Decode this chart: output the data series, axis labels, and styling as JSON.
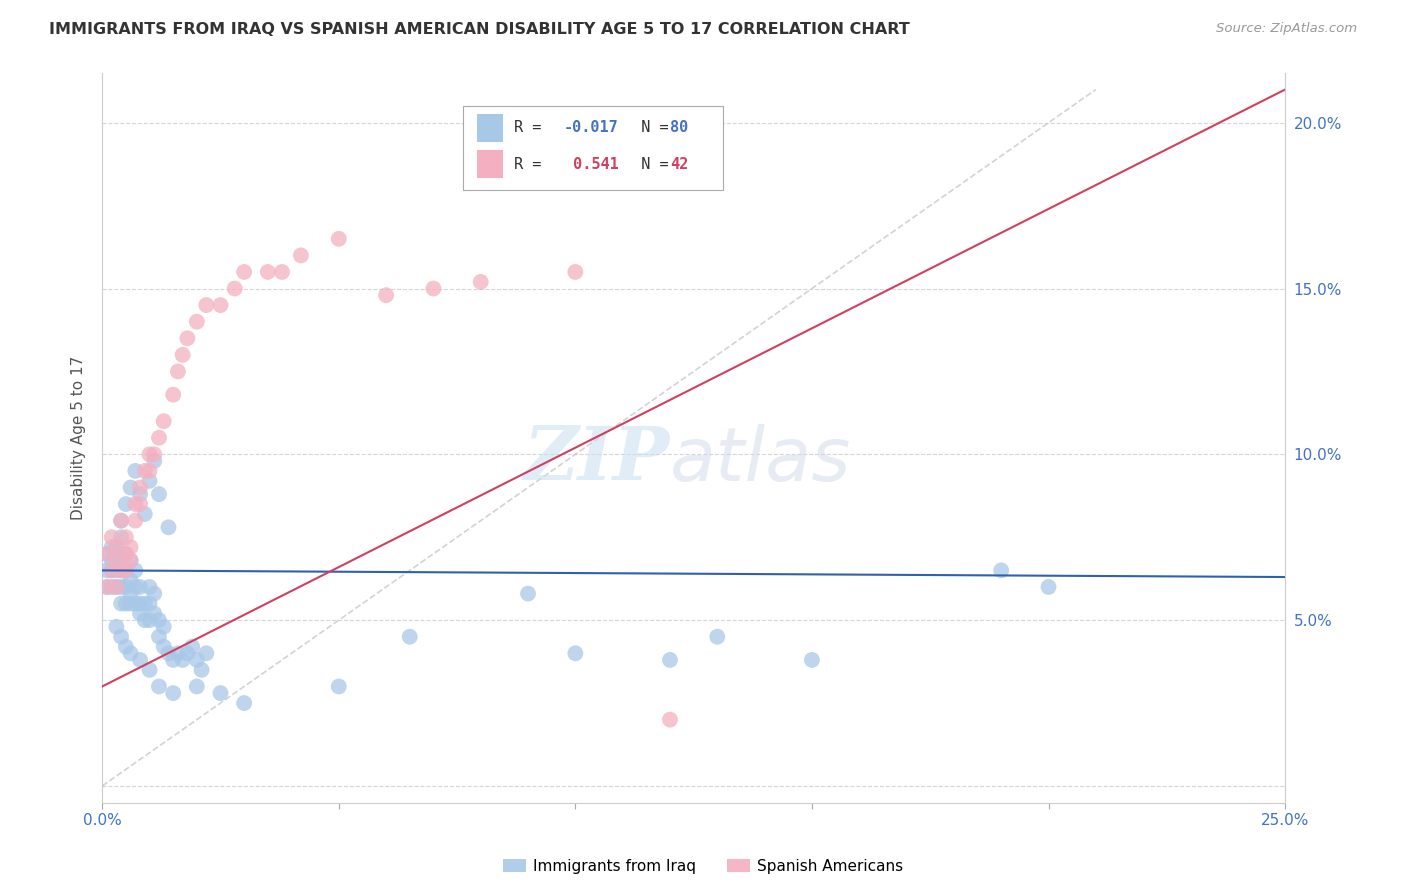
{
  "title": "IMMIGRANTS FROM IRAQ VS SPANISH AMERICAN DISABILITY AGE 5 TO 17 CORRELATION CHART",
  "source": "Source: ZipAtlas.com",
  "ylabel": "Disability Age 5 to 17",
  "xlim": [
    0.0,
    0.25
  ],
  "ylim": [
    -0.005,
    0.215
  ],
  "color_iraq": "#a8c8e8",
  "color_spanish": "#f4b0c0",
  "color_line_iraq": "#3060b0",
  "color_line_spanish": "#d04060",
  "color_diagonal": "#c8c8c8",
  "iraq_x": [
    0.001,
    0.001,
    0.001,
    0.002,
    0.002,
    0.002,
    0.002,
    0.003,
    0.003,
    0.003,
    0.003,
    0.003,
    0.004,
    0.004,
    0.004,
    0.004,
    0.005,
    0.005,
    0.005,
    0.005,
    0.006,
    0.006,
    0.006,
    0.006,
    0.007,
    0.007,
    0.007,
    0.008,
    0.008,
    0.008,
    0.009,
    0.009,
    0.01,
    0.01,
    0.01,
    0.011,
    0.011,
    0.012,
    0.012,
    0.013,
    0.013,
    0.014,
    0.015,
    0.016,
    0.017,
    0.018,
    0.019,
    0.02,
    0.021,
    0.022,
    0.004,
    0.005,
    0.006,
    0.007,
    0.008,
    0.009,
    0.01,
    0.011,
    0.012,
    0.014,
    0.003,
    0.004,
    0.005,
    0.006,
    0.008,
    0.01,
    0.012,
    0.015,
    0.02,
    0.025,
    0.03,
    0.05,
    0.065,
    0.09,
    0.1,
    0.12,
    0.13,
    0.15,
    0.19,
    0.2
  ],
  "iraq_y": [
    0.065,
    0.07,
    0.06,
    0.072,
    0.068,
    0.065,
    0.06,
    0.07,
    0.072,
    0.068,
    0.065,
    0.06,
    0.075,
    0.065,
    0.06,
    0.055,
    0.07,
    0.065,
    0.06,
    0.055,
    0.068,
    0.062,
    0.058,
    0.055,
    0.065,
    0.06,
    0.055,
    0.06,
    0.055,
    0.052,
    0.055,
    0.05,
    0.06,
    0.055,
    0.05,
    0.058,
    0.052,
    0.05,
    0.045,
    0.048,
    0.042,
    0.04,
    0.038,
    0.04,
    0.038,
    0.04,
    0.042,
    0.038,
    0.035,
    0.04,
    0.08,
    0.085,
    0.09,
    0.095,
    0.088,
    0.082,
    0.092,
    0.098,
    0.088,
    0.078,
    0.048,
    0.045,
    0.042,
    0.04,
    0.038,
    0.035,
    0.03,
    0.028,
    0.03,
    0.028,
    0.025,
    0.03,
    0.045,
    0.058,
    0.04,
    0.038,
    0.045,
    0.038,
    0.065,
    0.06
  ],
  "spanish_x": [
    0.001,
    0.001,
    0.002,
    0.002,
    0.003,
    0.003,
    0.003,
    0.004,
    0.004,
    0.005,
    0.005,
    0.005,
    0.006,
    0.006,
    0.007,
    0.007,
    0.008,
    0.008,
    0.009,
    0.01,
    0.01,
    0.011,
    0.012,
    0.013,
    0.015,
    0.016,
    0.017,
    0.018,
    0.02,
    0.022,
    0.025,
    0.028,
    0.03,
    0.035,
    0.038,
    0.042,
    0.05,
    0.06,
    0.07,
    0.08,
    0.1,
    0.12
  ],
  "spanish_y": [
    0.06,
    0.07,
    0.065,
    0.075,
    0.068,
    0.072,
    0.06,
    0.065,
    0.08,
    0.07,
    0.075,
    0.065,
    0.072,
    0.068,
    0.08,
    0.085,
    0.09,
    0.085,
    0.095,
    0.1,
    0.095,
    0.1,
    0.105,
    0.11,
    0.118,
    0.125,
    0.13,
    0.135,
    0.14,
    0.145,
    0.145,
    0.15,
    0.155,
    0.155,
    0.155,
    0.16,
    0.165,
    0.148,
    0.15,
    0.152,
    0.155,
    0.02
  ],
  "iraq_line": [
    0.0,
    0.25,
    0.065,
    0.063
  ],
  "spanish_line": [
    0.0,
    0.25,
    0.03,
    0.21
  ],
  "diag_line": [
    0.0,
    0.21,
    0.0,
    0.21
  ]
}
